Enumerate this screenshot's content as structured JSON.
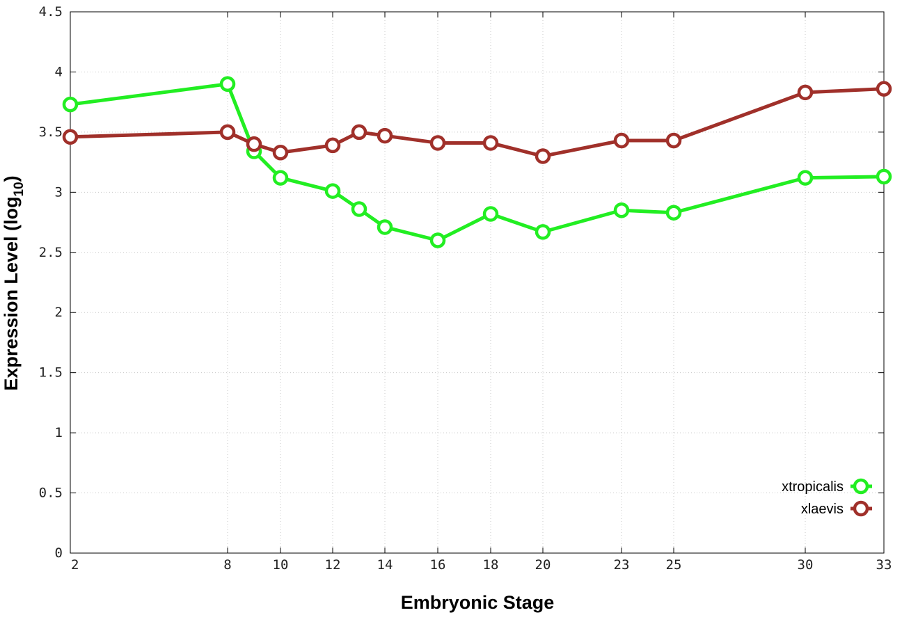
{
  "chart_data": {
    "type": "line",
    "title": "",
    "xlabel": "Embryonic Stage",
    "ylabel_main": "Expression Level (log",
    "ylabel_sub": "10",
    "ylabel_end": ")",
    "x_ticks": [
      "2",
      "8",
      "10",
      "12",
      "14",
      "16",
      "18",
      "20",
      "23",
      "25",
      "30",
      "33"
    ],
    "y_ticks": [
      "0",
      "0.5",
      "1",
      "1.5",
      "2",
      "2.5",
      "3",
      "3.5",
      "4",
      "4.5"
    ],
    "ylim": [
      0,
      4.5
    ],
    "x_categories": [
      "2",
      "8",
      "9",
      "10",
      "12",
      "13",
      "14",
      "16",
      "18",
      "20",
      "23",
      "25",
      "30",
      "33"
    ],
    "grid": true,
    "legend_position": "bottom-right",
    "series": [
      {
        "name": "xtropicalis",
        "color": "#22ee22",
        "points": [
          {
            "x": "2",
            "y": 3.73
          },
          {
            "x": "8",
            "y": 3.9
          },
          {
            "x": "9",
            "y": 3.34
          },
          {
            "x": "10",
            "y": 3.12
          },
          {
            "x": "12",
            "y": 3.01
          },
          {
            "x": "13",
            "y": 2.86
          },
          {
            "x": "14",
            "y": 2.71
          },
          {
            "x": "16",
            "y": 2.6
          },
          {
            "x": "18",
            "y": 2.82
          },
          {
            "x": "20",
            "y": 2.67
          },
          {
            "x": "23",
            "y": 2.85
          },
          {
            "x": "25",
            "y": 2.83
          },
          {
            "x": "30",
            "y": 3.12
          },
          {
            "x": "33",
            "y": 3.13
          }
        ]
      },
      {
        "name": "xlaevis",
        "color": "#a0302a",
        "points": [
          {
            "x": "2",
            "y": 3.46
          },
          {
            "x": "8",
            "y": 3.5
          },
          {
            "x": "9",
            "y": 3.4
          },
          {
            "x": "10",
            "y": 3.33
          },
          {
            "x": "12",
            "y": 3.39
          },
          {
            "x": "13",
            "y": 3.5
          },
          {
            "x": "14",
            "y": 3.47
          },
          {
            "x": "16",
            "y": 3.41
          },
          {
            "x": "18",
            "y": 3.41
          },
          {
            "x": "20",
            "y": 3.3
          },
          {
            "x": "23",
            "y": 3.43
          },
          {
            "x": "25",
            "y": 3.43
          },
          {
            "x": "30",
            "y": 3.83
          },
          {
            "x": "33",
            "y": 3.86
          }
        ]
      }
    ]
  }
}
